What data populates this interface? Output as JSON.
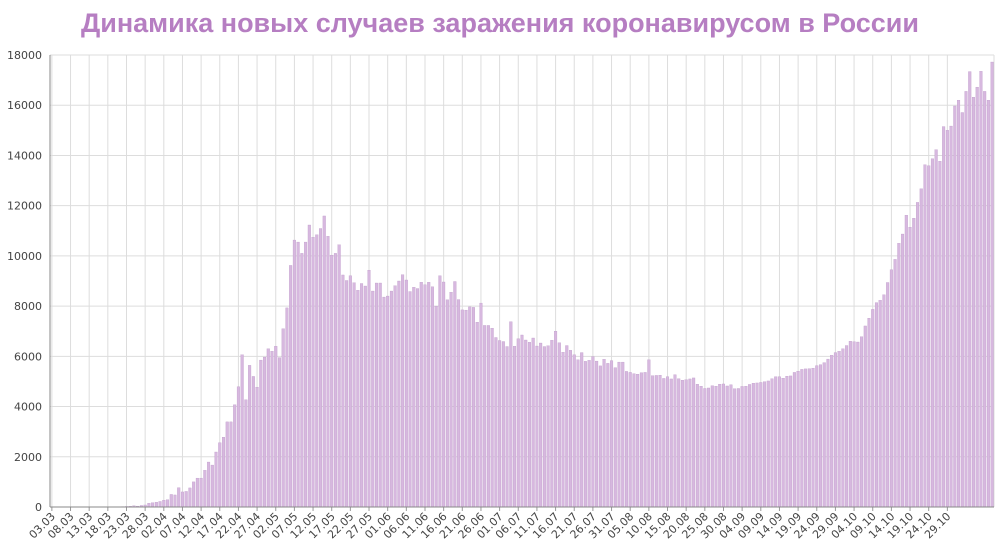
{
  "chart_data": {
    "type": "bar",
    "title": "Динамика новых случаев заражения коронавирусом в России",
    "xlabel": "",
    "ylabel": "",
    "ylim": [
      0,
      18000
    ],
    "yticks": [
      0,
      2000,
      4000,
      6000,
      8000,
      10000,
      12000,
      14000,
      16000,
      18000
    ],
    "grid": true,
    "bar_color": "#d7b8df",
    "bar_edge_color": "#b894c4",
    "title_color": "#b67ec2",
    "tick_labels": [
      "03.03",
      "08.03",
      "13.03",
      "18.03",
      "23.03",
      "28.03",
      "02.04",
      "07.04",
      "12.04",
      "17.04",
      "22.04",
      "27.04",
      "02.05",
      "07.05",
      "12.05",
      "17.05",
      "22.05",
      "27.05",
      "01.06",
      "06.06",
      "11.06",
      "16.06",
      "21.06",
      "26.06",
      "01.07",
      "06.07",
      "11.07",
      "16.07",
      "21.07",
      "26.07",
      "31.07",
      "05.08",
      "10.08",
      "15.08",
      "20.08",
      "25.08",
      "30.08",
      "04.09",
      "09.09",
      "14.09",
      "19.09",
      "24.09",
      "29.09",
      "04.10",
      "09.10",
      "14.10",
      "19.10",
      "24.10",
      "29.10"
    ],
    "start_date": "03.03",
    "values": [
      0,
      0,
      0,
      0,
      0,
      0,
      0,
      0,
      0,
      0,
      0,
      0,
      0,
      0,
      0,
      0,
      3,
      6,
      11,
      16,
      22,
      28,
      50,
      35,
      60,
      80,
      150,
      170,
      190,
      220,
      270,
      290,
      500,
      480,
      770,
      600,
      620,
      760,
      1000,
      1150,
      1150,
      1460,
      1790,
      1670,
      2190,
      2560,
      2780,
      3390,
      3390,
      4070,
      4790,
      6060,
      4270,
      5640,
      5200,
      4770,
      5850,
      5970,
      6300,
      6200,
      6400,
      5950,
      7100,
      7930,
      9620,
      10630,
      10550,
      10100,
      10550,
      11230,
      10740,
      10840,
      11090,
      11590,
      10780,
      10030,
      10100,
      10440,
      9240,
      9020,
      9210,
      8930,
      8630,
      8900,
      8800,
      9430,
      8600,
      8920,
      8920,
      8360,
      8400,
      8600,
      8810,
      9000,
      9250,
      9040,
      8580,
      8750,
      8700,
      8950,
      8850,
      8950,
      8770,
      8000,
      9210,
      8960,
      8250,
      8550,
      8980,
      8260,
      7850,
      7840,
      7970,
      7950,
      7360,
      8120,
      7230,
      7230,
      7120,
      6750,
      6630,
      6590,
      6390,
      7380,
      6400,
      6700,
      6850,
      6650,
      6560,
      6730,
      6410,
      6530,
      6390,
      6420,
      6640,
      7000,
      6540,
      6160,
      6430,
      6240,
      6060,
      5860,
      6150,
      5800,
      5840,
      5990,
      5810,
      5620,
      5880,
      5720,
      5830,
      5550,
      5770,
      5770,
      5400,
      5360,
      5310,
      5290,
      5350,
      5360,
      5860,
      5230,
      5240,
      5250,
      5120,
      5190,
      5100,
      5270,
      5110,
      5050,
      5070,
      5100,
      5140,
      4890,
      4810,
      4720,
      4740,
      4830,
      4810,
      4890,
      4900,
      4820,
      4870,
      4710,
      4720,
      4800,
      4810,
      4880,
      4930,
      4940,
      4960,
      4990,
      5020,
      5110,
      5190,
      5190,
      5130,
      5210,
      5220,
      5360,
      5410,
      5480,
      5500,
      5510,
      5530,
      5630,
      5670,
      5750,
      5890,
      6040,
      6150,
      6200,
      6300,
      6430,
      6600,
      6580,
      6570,
      6780,
      7210,
      7520,
      7870,
      8140,
      8230,
      8450,
      8940,
      9450,
      9860,
      10500,
      10870,
      11620,
      11140,
      11500,
      12130,
      12670,
      13630,
      13590,
      13870,
      14230,
      13770,
      15150,
      15000,
      15170,
      15970,
      16200,
      15710,
      16550,
      17340,
      16320,
      16720,
      17350,
      16550,
      16200,
      17720
    ]
  }
}
